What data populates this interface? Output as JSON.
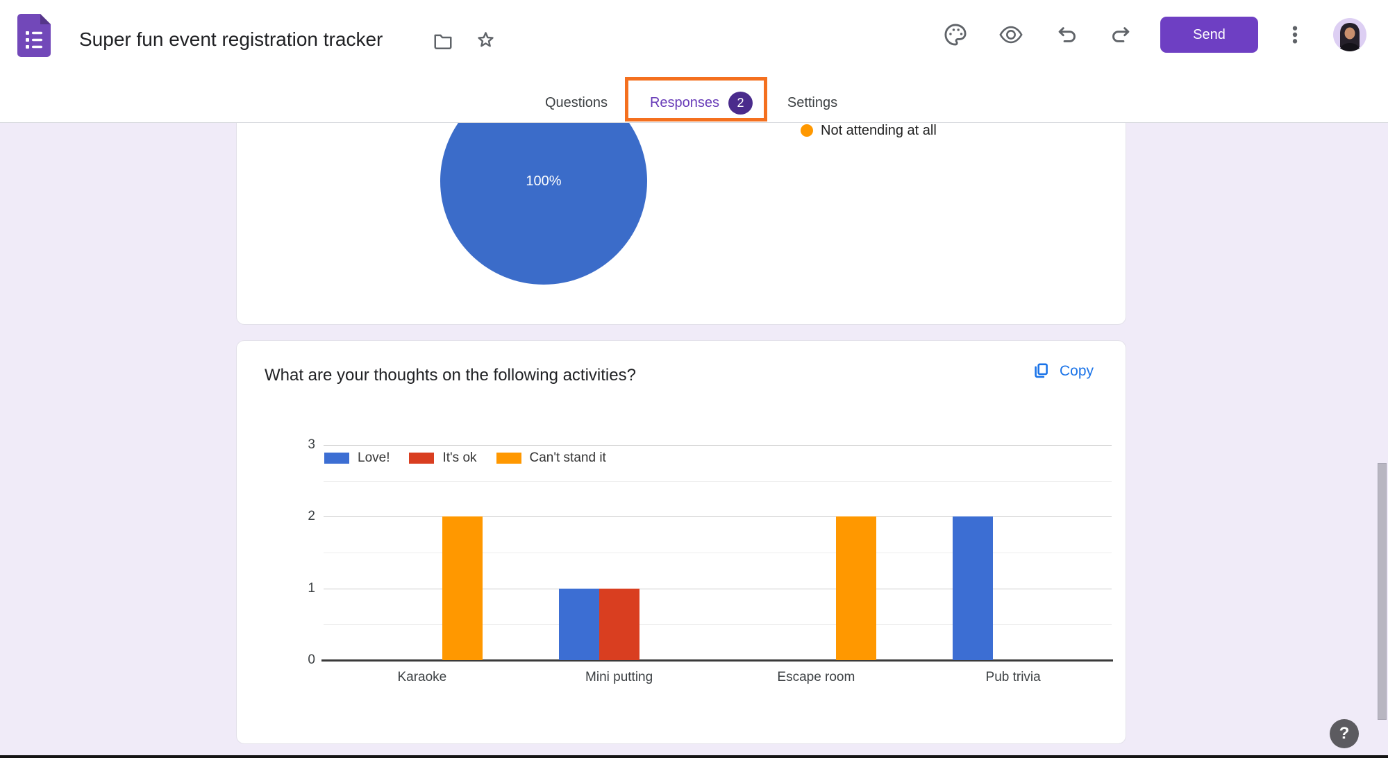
{
  "header": {
    "app_icon": "google-forms-icon",
    "title": "Super fun event registration tracker",
    "toolbar_icons": [
      "folder-icon",
      "star-icon",
      "palette-icon",
      "preview-eye-icon",
      "undo-icon",
      "redo-icon",
      "more-options-icon",
      "avatar"
    ],
    "send_label": "Send"
  },
  "tabs": {
    "items": [
      {
        "label": "Questions",
        "active": false
      },
      {
        "label": "Responses",
        "badge": "2",
        "active": true
      },
      {
        "label": "Settings",
        "active": false
      }
    ],
    "annotation": {
      "shape": "orange-rectangle",
      "target": "Responses",
      "color": "#f4701f"
    }
  },
  "pie_card": {
    "percent_label": "100%",
    "slice_color": "#3b6cc9",
    "legend": [
      {
        "label": "Not attending at all",
        "color": "#ff9800"
      }
    ]
  },
  "activity_card": {
    "title": "What are your thoughts on the following activities?",
    "copy_label": "Copy",
    "copy_color": "#1a73e8"
  },
  "chart_data": [
    {
      "type": "pie",
      "title": "",
      "labels": [
        "Not attending at all"
      ],
      "values": [
        100
      ],
      "unit": "%",
      "slice_colors": [
        "#3b6cc9"
      ],
      "note": "single visible slice labeled 100%, legend at right"
    },
    {
      "type": "bar",
      "title": "What are your thoughts on the following activities?",
      "categories": [
        "Karaoke",
        "Mini putting",
        "Escape room",
        "Pub trivia"
      ],
      "series": [
        {
          "name": "Love!",
          "color": "#3c6ed3",
          "values": [
            0,
            1,
            0,
            2
          ]
        },
        {
          "name": "It's ok",
          "color": "#d93e20",
          "values": [
            0,
            1,
            0,
            0
          ]
        },
        {
          "name": "Can't stand it",
          "color": "#ff9800",
          "values": [
            2,
            0,
            2,
            0
          ]
        }
      ],
      "xlabel": "",
      "ylabel": "",
      "ylim": [
        0,
        3
      ],
      "yticks": [
        0,
        1,
        2,
        3
      ],
      "minor_gridlines": [
        0.5,
        1.5,
        2.5
      ],
      "legend_position": "top-left-inside",
      "grid": true
    }
  ],
  "help": {
    "label": "?"
  }
}
